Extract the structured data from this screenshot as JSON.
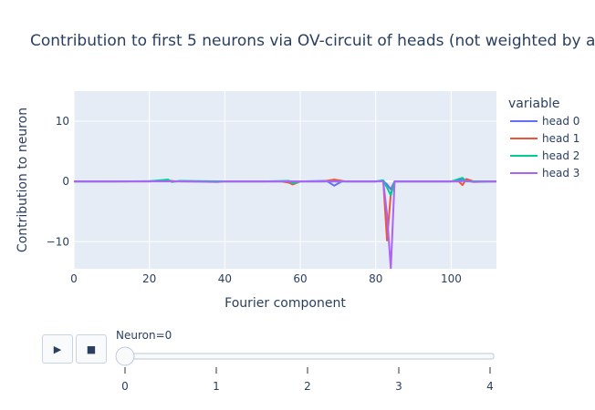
{
  "chart_data": {
    "type": "line",
    "title": "Contribution to first 5 neurons via OV-circuit of heads (not weighted by a",
    "xlabel": "Fourier component",
    "ylabel": "Contribution to neuron",
    "xlim": [
      0,
      112
    ],
    "ylim": [
      -14.5,
      15
    ],
    "x_ticks": [
      0,
      20,
      40,
      60,
      80,
      100
    ],
    "y_ticks": [
      10,
      0,
      -10
    ],
    "grid": true,
    "legend": {
      "title": "variable",
      "position": "right"
    },
    "series": [
      {
        "name": "head 0",
        "color": "#636efa",
        "points": [
          [
            0,
            0
          ],
          [
            10,
            0
          ],
          [
            20,
            0.05
          ],
          [
            24,
            0.1
          ],
          [
            26,
            0.05
          ],
          [
            30,
            0
          ],
          [
            40,
            0
          ],
          [
            50,
            0
          ],
          [
            60,
            0
          ],
          [
            67,
            0.1
          ],
          [
            69,
            -0.7
          ],
          [
            71,
            0
          ],
          [
            80,
            0
          ],
          [
            82,
            0.1
          ],
          [
            83,
            -0.5
          ],
          [
            84,
            -1.3
          ],
          [
            85,
            0
          ],
          [
            100,
            0
          ],
          [
            102,
            0.2
          ],
          [
            103,
            0.4
          ],
          [
            104,
            0.1
          ],
          [
            106,
            0
          ],
          [
            112,
            0
          ]
        ]
      },
      {
        "name": "head 1",
        "color": "#ef553b",
        "points": [
          [
            0,
            0
          ],
          [
            10,
            0
          ],
          [
            20,
            0
          ],
          [
            25,
            0.15
          ],
          [
            27,
            0
          ],
          [
            40,
            0
          ],
          [
            55,
            0
          ],
          [
            57,
            -0.2
          ],
          [
            58,
            -0.5
          ],
          [
            60,
            0
          ],
          [
            66,
            0
          ],
          [
            69,
            0.3
          ],
          [
            72,
            0
          ],
          [
            80,
            0
          ],
          [
            82,
            0.1
          ],
          [
            83,
            -9.8
          ],
          [
            84,
            -2.0
          ],
          [
            85,
            0
          ],
          [
            100,
            0
          ],
          [
            102,
            0
          ],
          [
            103,
            -0.6
          ],
          [
            104,
            0.4
          ],
          [
            106,
            0
          ],
          [
            112,
            0
          ]
        ]
      },
      {
        "name": "head 2",
        "color": "#00cc96",
        "points": [
          [
            0,
            0
          ],
          [
            10,
            0
          ],
          [
            20,
            0.05
          ],
          [
            25,
            0.3
          ],
          [
            26,
            -0.1
          ],
          [
            28,
            0.1
          ],
          [
            40,
            0
          ],
          [
            50,
            0
          ],
          [
            57,
            0.1
          ],
          [
            58,
            -0.3
          ],
          [
            60,
            0
          ],
          [
            70,
            0
          ],
          [
            80,
            0
          ],
          [
            82,
            0.2
          ],
          [
            83,
            -1.0
          ],
          [
            84,
            -2.3
          ],
          [
            85,
            0
          ],
          [
            100,
            0
          ],
          [
            102,
            0.4
          ],
          [
            103,
            0.6
          ],
          [
            104,
            0
          ],
          [
            106,
            0
          ],
          [
            112,
            0
          ]
        ]
      },
      {
        "name": "head 3",
        "color": "#ab63fa",
        "points": [
          [
            0,
            0
          ],
          [
            10,
            0
          ],
          [
            20,
            0
          ],
          [
            30,
            0
          ],
          [
            38,
            -0.1
          ],
          [
            40,
            0
          ],
          [
            50,
            0
          ],
          [
            60,
            0
          ],
          [
            70,
            0
          ],
          [
            80,
            0
          ],
          [
            82,
            0
          ],
          [
            83,
            -5.5
          ],
          [
            84,
            -14.5
          ],
          [
            85,
            0
          ],
          [
            100,
            0
          ],
          [
            102,
            0
          ],
          [
            104,
            0.1
          ],
          [
            106,
            -0.1
          ],
          [
            108,
            -0.05
          ],
          [
            112,
            0
          ]
        ]
      }
    ],
    "slider": {
      "label": "Neuron=0",
      "value": 0,
      "steps": [
        "0",
        "1",
        "2",
        "3",
        "4"
      ]
    },
    "controls": {
      "play_icon": "play-icon",
      "stop_icon": "stop-icon"
    }
  }
}
